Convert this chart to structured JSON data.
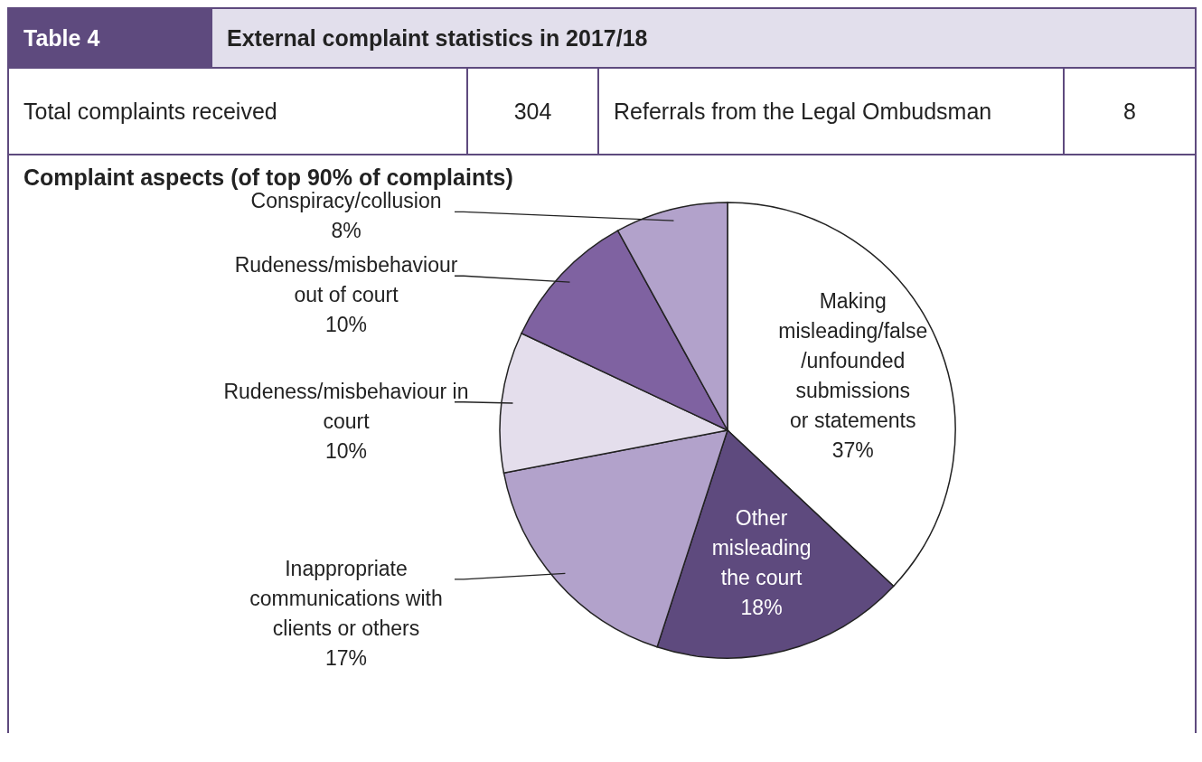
{
  "chart_data": {
    "type": "pie",
    "title": "Complaint aspects (of top 90% of complaints)",
    "annotations": [
      "Table 4",
      "External complaint statistics in 2017/18",
      "Total complaints received",
      "304",
      "Referrals from the Legal Ombudsman",
      "8"
    ],
    "categories": [
      "Making misleading/false /unfounded submissions or statements",
      "Other misleading the court",
      "Inappropriate communications with clients or others",
      "Rudeness/misbehaviour in court",
      "Rudeness/misbehaviour out of court",
      "Conspiracy/collusion"
    ],
    "values": [
      37,
      18,
      17,
      10,
      10,
      8
    ],
    "value_labels": [
      "37%",
      "18%",
      "17%",
      "10%",
      "10%",
      "8%"
    ],
    "colors": [
      "#ffffff",
      "#5e4a7e",
      "#b2a2cb",
      "#e4deec",
      "#7f62a1",
      "#b2a2cb"
    ],
    "legend": false
  }
}
